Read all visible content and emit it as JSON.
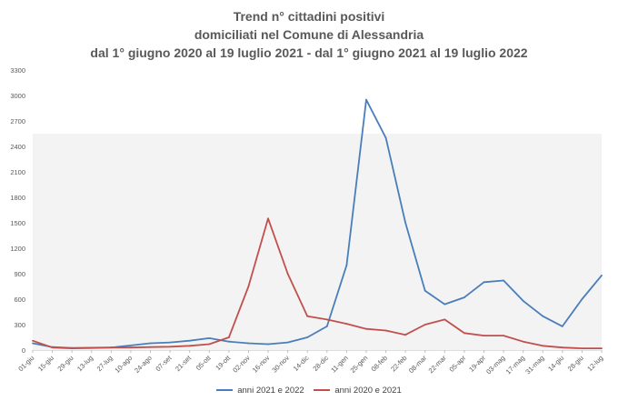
{
  "title": {
    "line1": "Trend n° cittadini positivi",
    "line2": "domiciliati nel Comune di Alessandria",
    "line3": "dal 1° giugno 2020 al 19 luglio 2021 - dal 1° giugno 2021 al 19 luglio 2022"
  },
  "chart_data": {
    "type": "line",
    "title": "Trend n° cittadini positivi domiciliati nel Comune di Alessandria dal 1° giugno 2020 al 19 luglio 2021 - dal 1° giugno 2021 al 19 luglio 2022",
    "xlabel": "",
    "ylabel": "",
    "ylim": [
      0,
      3300
    ],
    "y_ticks": [
      0,
      300,
      600,
      900,
      1200,
      1500,
      1800,
      2100,
      2400,
      2700,
      3000,
      3300
    ],
    "categories": [
      "01-giu",
      "15-giu",
      "29-giu",
      "13-lug",
      "27-lug",
      "10-ago",
      "24-ago",
      "07-set",
      "21-set",
      "05-ott",
      "19-ott",
      "02-nov",
      "16-nov",
      "30-nov",
      "14-dic",
      "28-dic",
      "11-gen",
      "25-gen",
      "08-feb",
      "22-feb",
      "08-mar",
      "22-mar",
      "05-apr",
      "19-apr",
      "03-mag",
      "17-mag",
      "31-mag",
      "14-giu",
      "28-giu",
      "12-lug"
    ],
    "grid": false,
    "legend_position": "bottom",
    "series": [
      {
        "name": "anni 2021 e 2022",
        "color": "#4a7ebb",
        "values": [
          80,
          35,
          25,
          28,
          30,
          55,
          80,
          90,
          110,
          140,
          100,
          80,
          70,
          90,
          150,
          280,
          1000,
          2950,
          2500,
          1500,
          700,
          540,
          620,
          800,
          820,
          580,
          400,
          280,
          600,
          880
        ]
      },
      {
        "name": "anni 2020 e 2021",
        "color": "#c0504d",
        "values": [
          110,
          30,
          20,
          25,
          30,
          30,
          35,
          40,
          50,
          70,
          150,
          750,
          1550,
          900,
          400,
          360,
          310,
          250,
          230,
          180,
          300,
          360,
          200,
          170,
          170,
          100,
          50,
          30,
          20,
          20
        ]
      }
    ]
  }
}
